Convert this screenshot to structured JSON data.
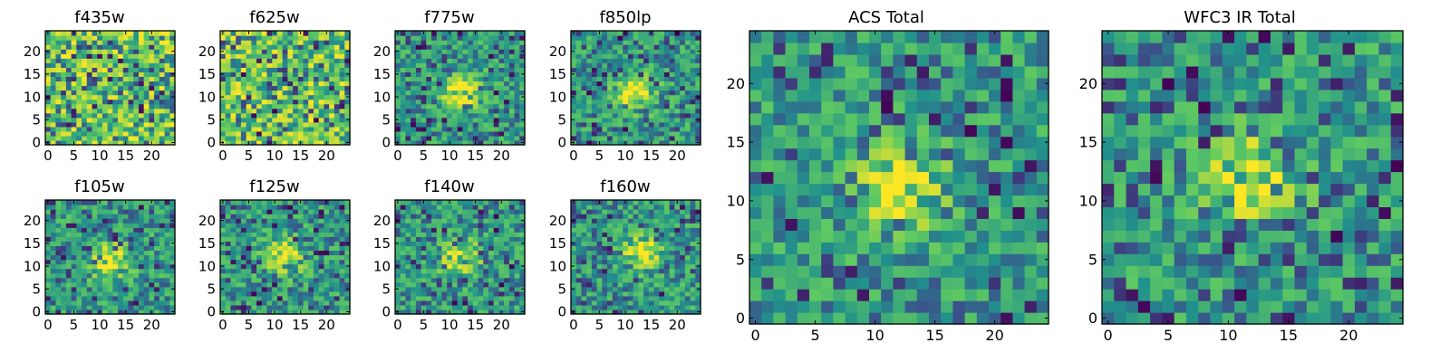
{
  "figure": {
    "colormap": "viridis",
    "colormap_stops": [
      "#440154",
      "#3b528b",
      "#21918c",
      "#5ec962",
      "#fde725"
    ],
    "axes_color": "#000000",
    "background": "#ffffff"
  },
  "chart_data": [
    {
      "type": "heatmap",
      "title": "f435w",
      "grid_size": 25,
      "xlim": [
        0,
        24
      ],
      "ylim": [
        0,
        24
      ],
      "xticks": [
        "0",
        "5",
        "10",
        "15",
        "20"
      ],
      "yticks": [
        "0",
        "5",
        "10",
        "15",
        "20"
      ],
      "peak": null
    },
    {
      "type": "heatmap",
      "title": "f625w",
      "grid_size": 25,
      "xlim": [
        0,
        24
      ],
      "ylim": [
        0,
        24
      ],
      "xticks": [
        "0",
        "5",
        "10",
        "15",
        "20"
      ],
      "yticks": [
        "0",
        "5",
        "10",
        "15",
        "20"
      ],
      "peak": null
    },
    {
      "type": "heatmap",
      "title": "f775w",
      "grid_size": 25,
      "xlim": [
        0,
        24
      ],
      "ylim": [
        0,
        24
      ],
      "xticks": [
        "0",
        "5",
        "10",
        "15",
        "20"
      ],
      "yticks": [
        "0",
        "5",
        "10",
        "15",
        "20"
      ],
      "peak": [
        12,
        11
      ]
    },
    {
      "type": "heatmap",
      "title": "f850lp",
      "grid_size": 25,
      "xlim": [
        0,
        24
      ],
      "ylim": [
        0,
        24
      ],
      "xticks": [
        "0",
        "5",
        "10",
        "15",
        "20"
      ],
      "yticks": [
        "0",
        "5",
        "10",
        "15",
        "20"
      ],
      "peak": [
        12,
        11
      ]
    },
    {
      "type": "heatmap",
      "title": "f105w",
      "grid_size": 25,
      "xlim": [
        0,
        24
      ],
      "ylim": [
        0,
        24
      ],
      "xticks": [
        "0",
        "5",
        "10",
        "15",
        "20"
      ],
      "yticks": [
        "0",
        "5",
        "10",
        "15",
        "20"
      ],
      "peak": [
        12,
        11
      ]
    },
    {
      "type": "heatmap",
      "title": "f125w",
      "grid_size": 25,
      "xlim": [
        0,
        24
      ],
      "ylim": [
        0,
        24
      ],
      "xticks": [
        "0",
        "5",
        "10",
        "15",
        "20"
      ],
      "yticks": [
        "0",
        "5",
        "10",
        "15",
        "20"
      ],
      "peak": [
        12,
        12
      ]
    },
    {
      "type": "heatmap",
      "title": "f140w",
      "grid_size": 25,
      "xlim": [
        0,
        24
      ],
      "ylim": [
        0,
        24
      ],
      "xticks": [
        "0",
        "5",
        "10",
        "15",
        "20"
      ],
      "yticks": [
        "0",
        "5",
        "10",
        "15",
        "20"
      ],
      "peak": [
        12,
        12
      ]
    },
    {
      "type": "heatmap",
      "title": "f160w",
      "grid_size": 25,
      "xlim": [
        0,
        24
      ],
      "ylim": [
        0,
        24
      ],
      "xticks": [
        "0",
        "5",
        "10",
        "15",
        "20"
      ],
      "yticks": [
        "0",
        "5",
        "10",
        "15",
        "20"
      ],
      "peak": [
        13,
        13
      ]
    },
    {
      "type": "heatmap",
      "title": "ACS Total",
      "grid_size": 25,
      "xlim": [
        0,
        24
      ],
      "ylim": [
        0,
        24
      ],
      "xticks": [
        "0",
        "5",
        "10",
        "15",
        "20"
      ],
      "yticks": [
        "0",
        "5",
        "10",
        "15",
        "20"
      ],
      "peak": [
        12,
        11
      ]
    },
    {
      "type": "heatmap",
      "title": "WFC3 IR Total",
      "grid_size": 25,
      "xlim": [
        0,
        24
      ],
      "ylim": [
        0,
        24
      ],
      "xticks": [
        "0",
        "5",
        "10",
        "15",
        "20"
      ],
      "yticks": [
        "0",
        "5",
        "10",
        "15",
        "20"
      ],
      "peak": [
        12,
        12
      ]
    }
  ]
}
